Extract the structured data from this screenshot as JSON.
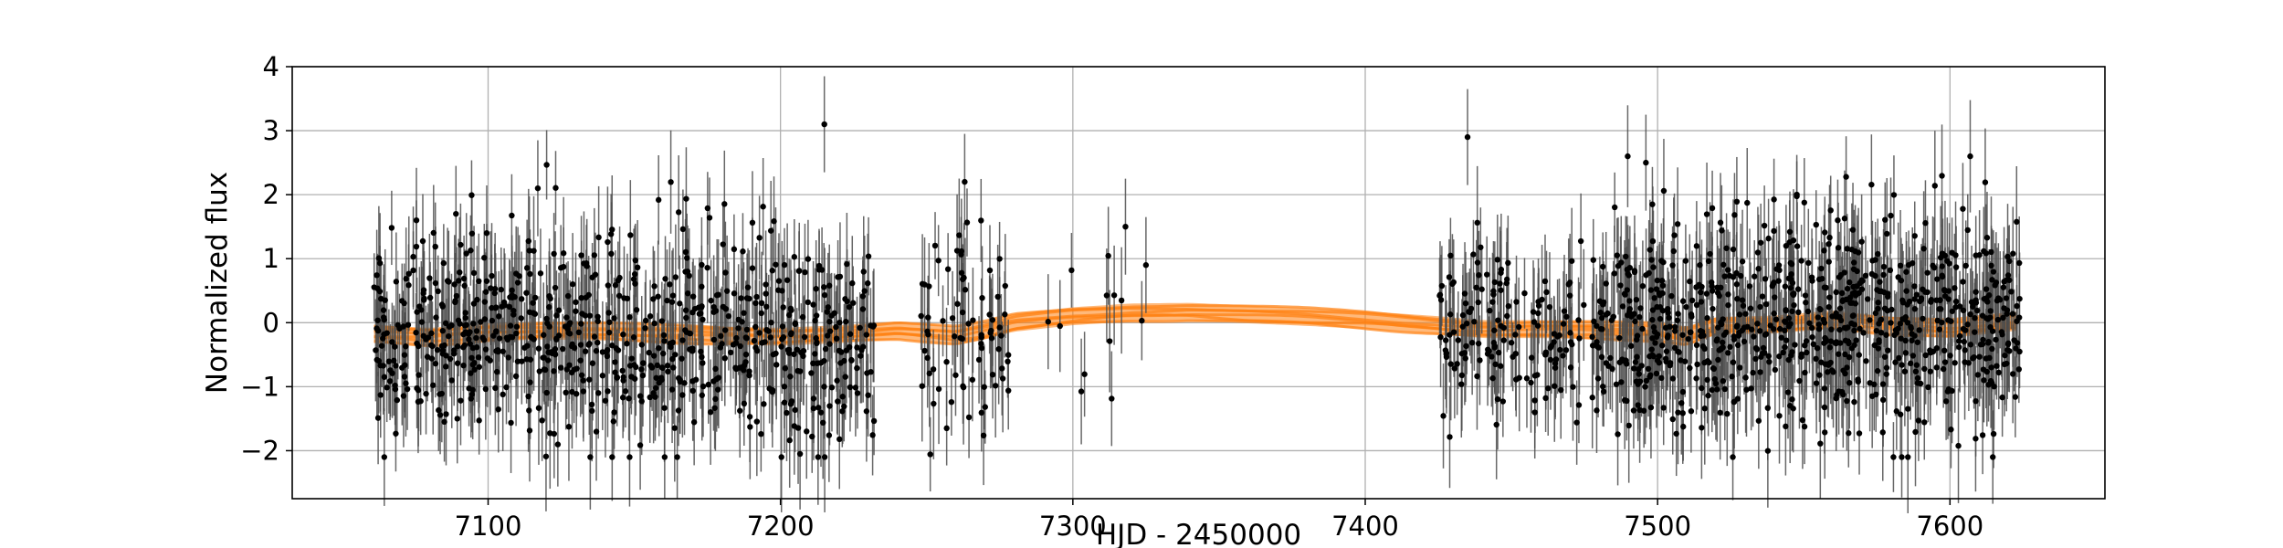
{
  "chart_data": {
    "type": "scatter",
    "title": "",
    "xlabel": "HJD - 2450000",
    "ylabel": "Normalized flux",
    "xlim": [
      7033,
      7653
    ],
    "ylim": [
      -2.75,
      4.0
    ],
    "xticks": [
      7100,
      7200,
      7300,
      7400,
      7500,
      7600
    ],
    "yticks": [
      -2,
      -1,
      0,
      1,
      2,
      3,
      4
    ],
    "grid": true,
    "legend": "none",
    "series": [
      {
        "style": "black points with gray error bars",
        "typical_error": 0.75,
        "segments": [
          {
            "x_start": 7061,
            "x_end": 7232,
            "center": -0.2,
            "scatter": 1.0,
            "density_per_day": 4.5
          },
          {
            "x_start": 7248,
            "x_end": 7278,
            "center": -0.1,
            "scatter": 1.1,
            "density_per_day": 2.5
          },
          {
            "x_start": 7290,
            "x_end": 7325,
            "center": 0.3,
            "scatter": 0.9,
            "density_per_day": 0.35
          },
          {
            "x_start": 7425,
            "x_end": 7485,
            "center": -0.1,
            "scatter": 0.9,
            "density_per_day": 3.0
          },
          {
            "x_start": 7485,
            "x_end": 7545,
            "center": -0.1,
            "scatter": 1.1,
            "density_per_day": 5.5
          },
          {
            "x_start": 7545,
            "x_end": 7624,
            "center": 0.0,
            "scatter": 1.1,
            "density_per_day": 6.0
          }
        ],
        "highlight_points": [
          {
            "x": 7215,
            "y": 3.1
          },
          {
            "x": 7435,
            "y": 2.9
          },
          {
            "x": 7496,
            "y": 2.5
          },
          {
            "x": 7263,
            "y": 2.2
          },
          {
            "x": 7117,
            "y": 2.1
          },
          {
            "x": 7089,
            "y": 1.7
          },
          {
            "x": 7325,
            "y": 0.9
          },
          {
            "x": 7318,
            "y": 1.5
          }
        ]
      },
      {
        "style": "orange model samples",
        "color": "#ff7f0e",
        "x": [
          7061,
          7080,
          7100,
          7120,
          7140,
          7160,
          7180,
          7200,
          7220,
          7240,
          7260,
          7270,
          7280,
          7300,
          7320,
          7340,
          7360,
          7380,
          7400,
          7425,
          7440,
          7460,
          7480,
          7500,
          7510,
          7520,
          7540,
          7560,
          7580,
          7600,
          7624
        ],
        "y": [
          -0.18,
          -0.22,
          -0.15,
          -0.12,
          -0.14,
          -0.17,
          -0.2,
          -0.22,
          -0.18,
          -0.12,
          -0.2,
          -0.12,
          0.0,
          0.1,
          0.16,
          0.17,
          0.13,
          0.09,
          0.04,
          -0.04,
          -0.1,
          -0.1,
          -0.12,
          -0.15,
          -0.22,
          -0.05,
          -0.03,
          0.05,
          -0.05,
          -0.1,
          0.02
        ],
        "band_halfwidth": 0.14
      }
    ]
  }
}
